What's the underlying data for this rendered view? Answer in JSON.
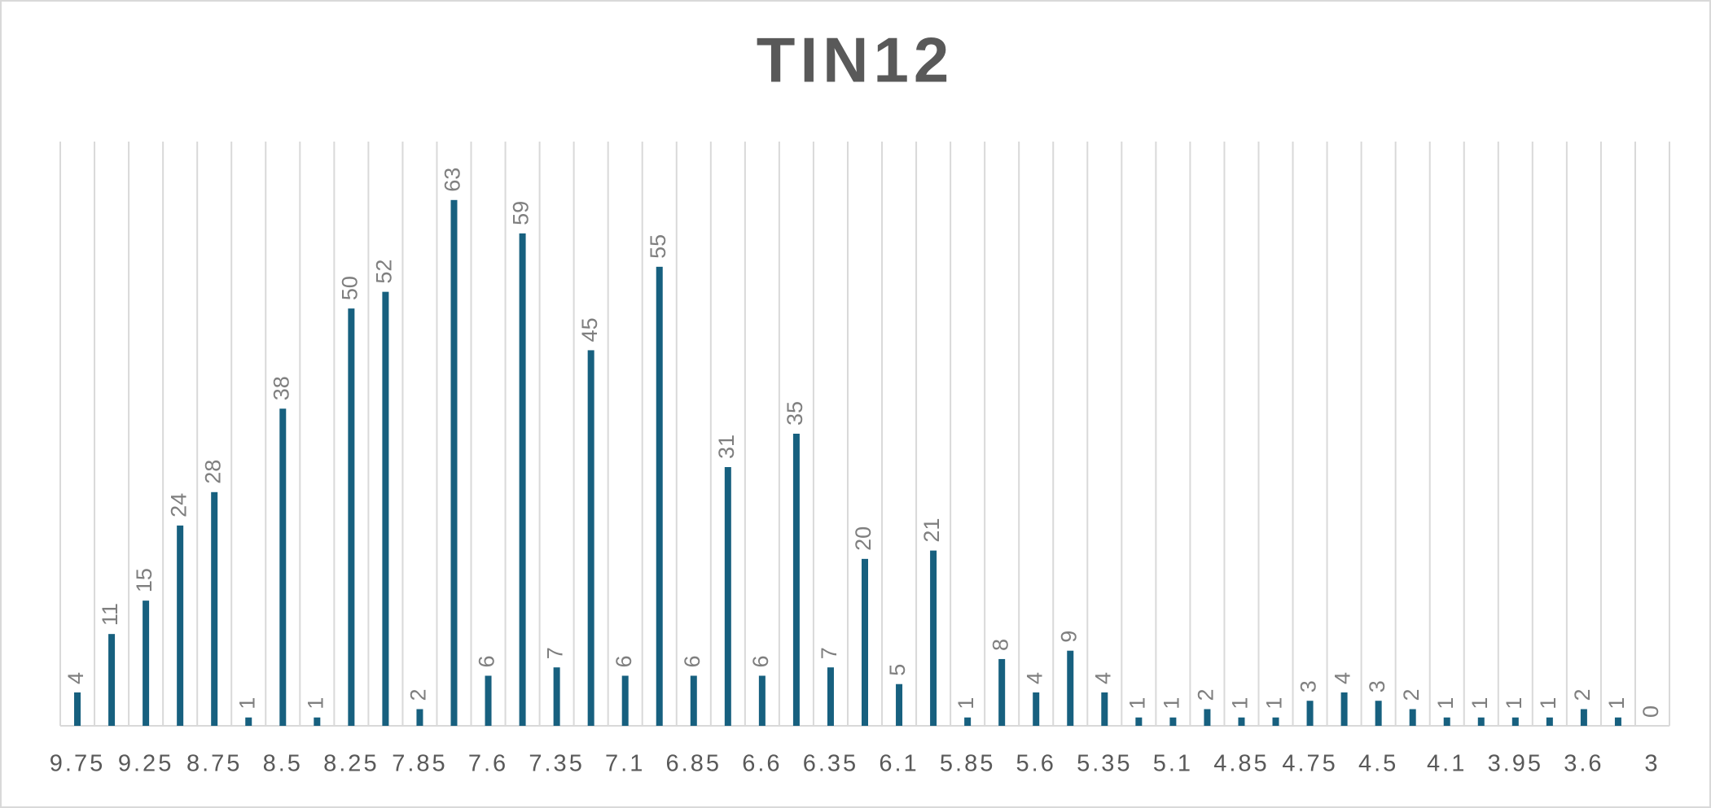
{
  "chart_data": {
    "type": "bar",
    "title": "TIN12",
    "categories": [
      "9.75",
      null,
      "9.25",
      null,
      "8.75",
      null,
      "8.5",
      null,
      "8.25",
      null,
      "7.85",
      null,
      "7.6",
      null,
      "7.35",
      null,
      "7.1",
      null,
      "6.85",
      null,
      "6.6",
      null,
      "6.35",
      null,
      "6.1",
      null,
      "5.85",
      null,
      "5.6",
      null,
      "5.35",
      null,
      "5.1",
      null,
      "4.85",
      null,
      "4.75",
      null,
      "4.5",
      null,
      "4.1",
      null,
      "3.95",
      null,
      "3.6",
      null,
      "3"
    ],
    "values": [
      4,
      11,
      15,
      24,
      28,
      1,
      38,
      1,
      50,
      52,
      2,
      63,
      6,
      59,
      7,
      45,
      6,
      55,
      6,
      31,
      6,
      35,
      7,
      20,
      5,
      21,
      1,
      8,
      4,
      9,
      4,
      1,
      1,
      2,
      1,
      1,
      3,
      4,
      3,
      2,
      1,
      1,
      1,
      1,
      2,
      1,
      0
    ],
    "color": "#17607f",
    "ylim": [
      0,
      70
    ]
  }
}
